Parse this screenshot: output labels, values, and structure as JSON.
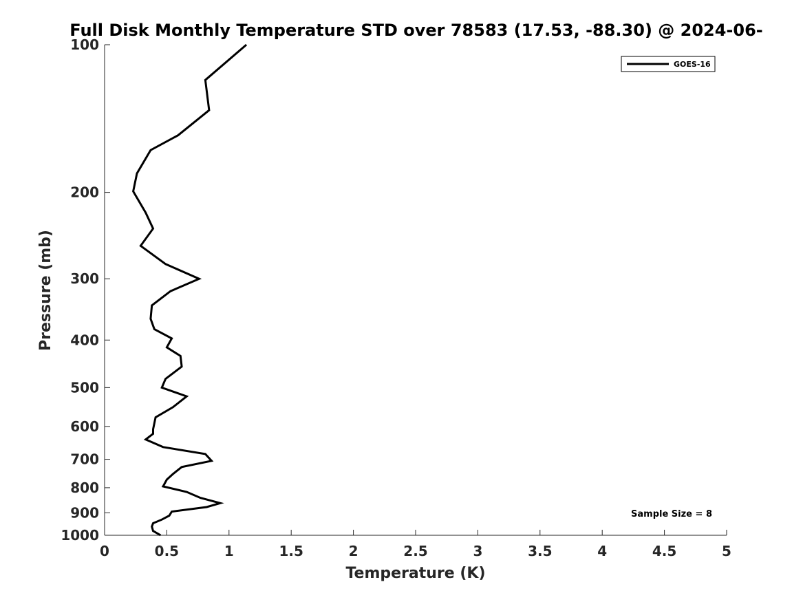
{
  "chart_data": {
    "type": "line",
    "title": "Full Disk Monthly Temperature STD over 78583 (17.53, -88.30) @ 2024-06-",
    "xlabel": "Temperature (K)",
    "ylabel": "Pressure (mb)",
    "xlim": [
      0,
      5
    ],
    "ylim": [
      100,
      1000
    ],
    "y_scale": "log",
    "y_reversed": true,
    "x_ticks": [
      "0",
      "0.5",
      "1",
      "1.5",
      "2",
      "2.5",
      "3",
      "3.5",
      "4",
      "4.5",
      "5"
    ],
    "y_ticks": [
      "100",
      "200",
      "300",
      "400",
      "500",
      "600",
      "700",
      "800",
      "900",
      "1000"
    ],
    "grid": false,
    "legend_position": "top-right",
    "annotation": "Sample Size = 8",
    "series": [
      {
        "name": "GOES-16",
        "color": "#000000",
        "points": [
          [
            1.14,
            100
          ],
          [
            0.81,
            118
          ],
          [
            0.84,
            136
          ],
          [
            0.59,
            153
          ],
          [
            0.37,
            164
          ],
          [
            0.26,
            183
          ],
          [
            0.23,
            199
          ],
          [
            0.33,
            220
          ],
          [
            0.39,
            237
          ],
          [
            0.29,
            257
          ],
          [
            0.49,
            280
          ],
          [
            0.76,
            300
          ],
          [
            0.53,
            318
          ],
          [
            0.38,
            340
          ],
          [
            0.37,
            362
          ],
          [
            0.4,
            380
          ],
          [
            0.54,
            397
          ],
          [
            0.5,
            414
          ],
          [
            0.61,
            431
          ],
          [
            0.62,
            453
          ],
          [
            0.49,
            480
          ],
          [
            0.46,
            500
          ],
          [
            0.66,
            521
          ],
          [
            0.55,
            548
          ],
          [
            0.41,
            575
          ],
          [
            0.39,
            608
          ],
          [
            0.39,
            621
          ],
          [
            0.33,
            638
          ],
          [
            0.47,
            661
          ],
          [
            0.81,
            683
          ],
          [
            0.86,
            705
          ],
          [
            0.62,
            726
          ],
          [
            0.55,
            750
          ],
          [
            0.5,
            770
          ],
          [
            0.47,
            795
          ],
          [
            0.66,
            816
          ],
          [
            0.77,
            839
          ],
          [
            0.93,
            860
          ],
          [
            0.82,
            876
          ],
          [
            0.54,
            895
          ],
          [
            0.52,
            912
          ],
          [
            0.46,
            929
          ],
          [
            0.39,
            945
          ],
          [
            0.38,
            960
          ],
          [
            0.39,
            980
          ],
          [
            0.45,
            1000
          ]
        ]
      }
    ]
  }
}
